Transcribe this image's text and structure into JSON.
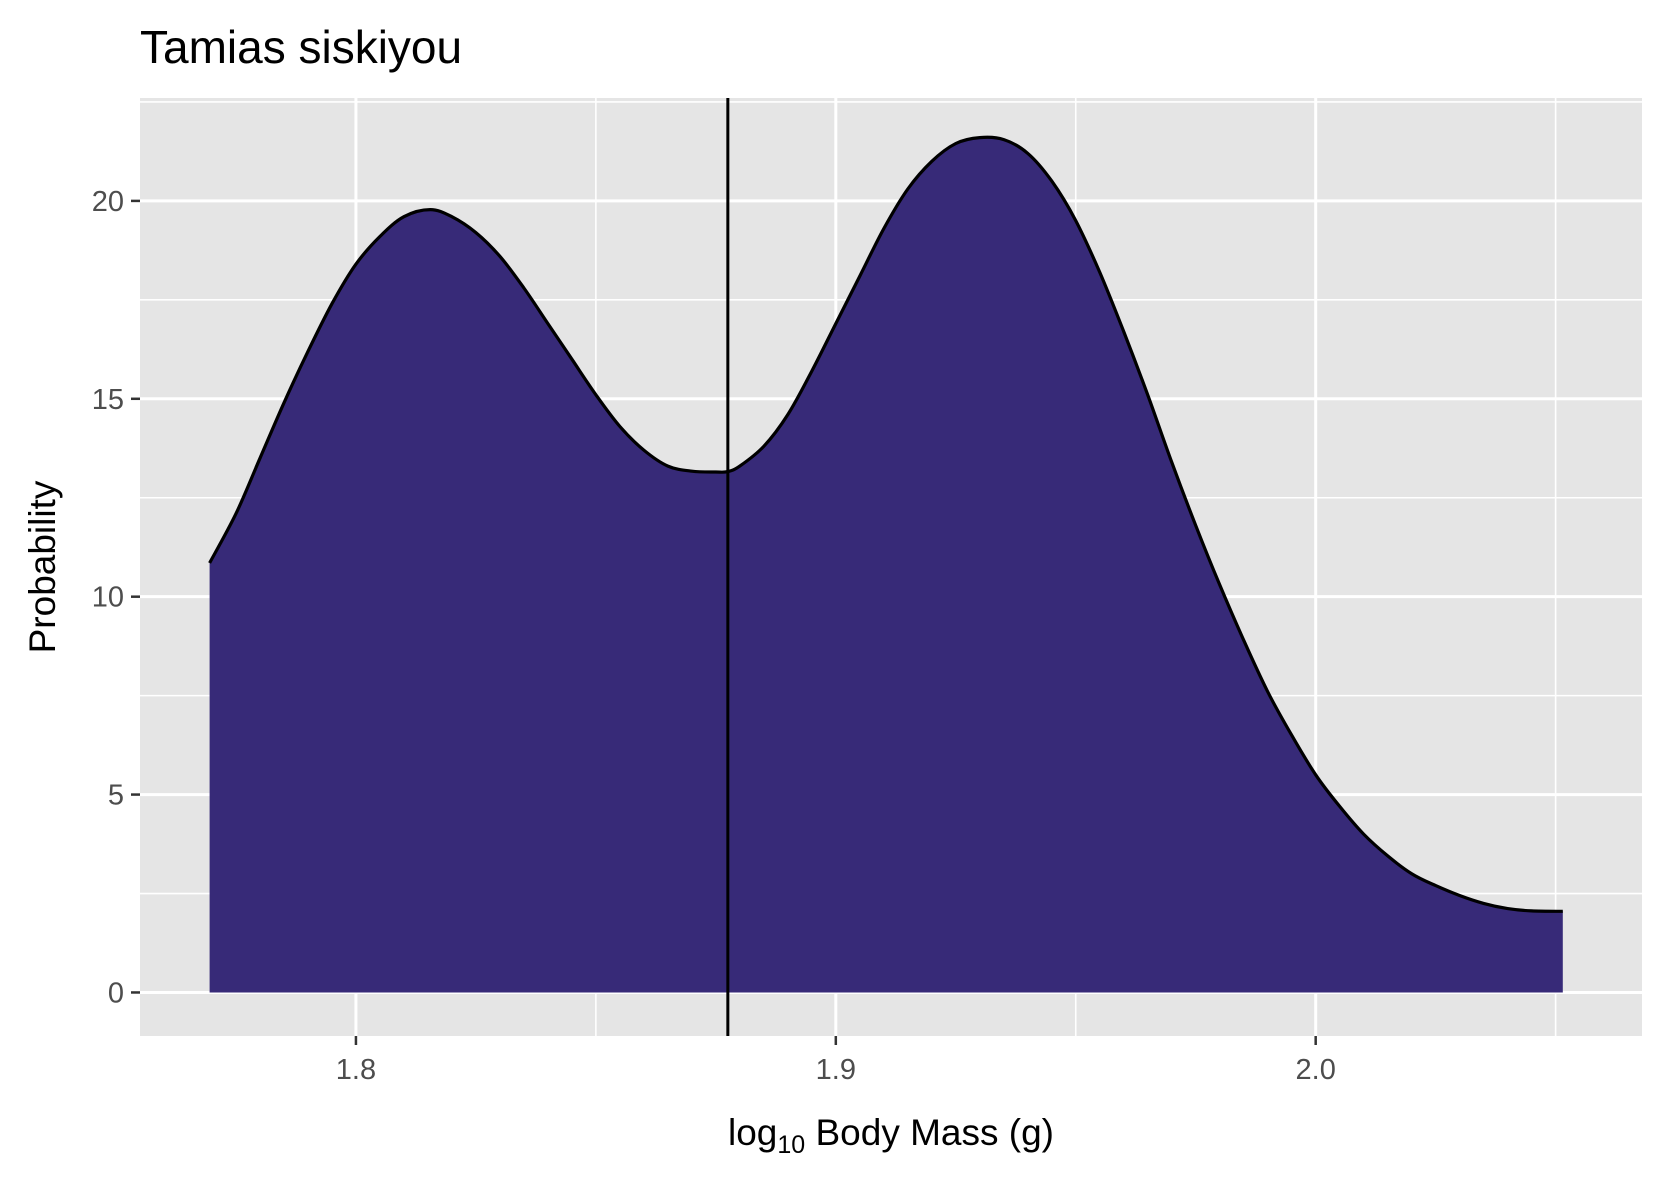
{
  "chart_data": {
    "type": "area",
    "title": "Tamias siskiyou",
    "xlabel": {
      "prefix": "log",
      "subscript": "10",
      "suffix": " Body Mass (g)"
    },
    "ylabel": "Probability",
    "xlim": [
      1.755,
      2.068
    ],
    "ylim": [
      -1.1,
      22.6
    ],
    "x_ticks": [
      {
        "value": 1.8,
        "label": "1.8"
      },
      {
        "value": 1.9,
        "label": "1.9"
      },
      {
        "value": 2.0,
        "label": "2.0"
      }
    ],
    "x_minor_ticks": [
      1.85,
      1.95,
      2.05
    ],
    "y_ticks": [
      {
        "value": 0,
        "label": "0"
      },
      {
        "value": 5,
        "label": "5"
      },
      {
        "value": 10,
        "label": "10"
      },
      {
        "value": 15,
        "label": "15"
      },
      {
        "value": 20,
        "label": "20"
      }
    ],
    "y_minor_ticks": [
      2.5,
      7.5,
      12.5,
      17.5,
      22.5
    ],
    "grid": true,
    "vline_x": 1.8775,
    "fill_color": "#372a78",
    "line_color": "#000000",
    "panel_color": "#e5e5e5",
    "series": [
      {
        "x": [
          1.7695,
          1.775,
          1.78,
          1.785,
          1.79,
          1.795,
          1.8,
          1.805,
          1.81,
          1.8155,
          1.82,
          1.825,
          1.83,
          1.835,
          1.84,
          1.845,
          1.85,
          1.855,
          1.86,
          1.865,
          1.87,
          1.875,
          1.8775,
          1.88,
          1.885,
          1.89,
          1.895,
          1.9,
          1.905,
          1.91,
          1.915,
          1.92,
          1.925,
          1.93,
          1.935,
          1.94,
          1.945,
          1.95,
          1.955,
          1.96,
          1.965,
          1.97,
          1.975,
          1.98,
          1.985,
          1.99,
          1.995,
          2.0,
          2.005,
          2.01,
          2.015,
          2.02,
          2.025,
          2.03,
          2.035,
          2.04,
          2.045,
          2.0515
        ],
        "y": [
          10.85,
          12.1,
          13.5,
          14.9,
          16.2,
          17.4,
          18.4,
          19.1,
          19.6,
          19.78,
          19.6,
          19.2,
          18.6,
          17.8,
          16.9,
          16.0,
          15.1,
          14.3,
          13.7,
          13.3,
          13.17,
          13.15,
          13.16,
          13.3,
          13.8,
          14.6,
          15.7,
          16.9,
          18.1,
          19.3,
          20.3,
          21.0,
          21.45,
          21.6,
          21.55,
          21.2,
          20.5,
          19.5,
          18.2,
          16.7,
          15.1,
          13.4,
          11.8,
          10.3,
          8.9,
          7.6,
          6.5,
          5.5,
          4.7,
          4.0,
          3.45,
          3.0,
          2.7,
          2.45,
          2.25,
          2.12,
          2.06,
          2.05
        ]
      }
    ]
  }
}
